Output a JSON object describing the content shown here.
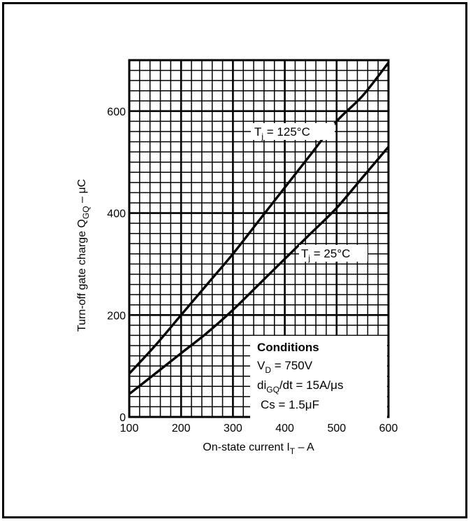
{
  "chart_data": {
    "type": "line",
    "xlabel": {
      "main": "On-state current I",
      "sub": "T",
      "tail": " – A"
    },
    "ylabel": {
      "main": "Turn-off gate charge Q",
      "sub": "GQ",
      "tail": " – μC"
    },
    "xlim": [
      100,
      600
    ],
    "ylim": [
      0,
      700
    ],
    "x_ticks": [
      "100",
      "200",
      "300",
      "400",
      "500",
      "600"
    ],
    "y_ticks": [
      "0",
      "200",
      "400",
      "600"
    ],
    "grid": true,
    "series": [
      {
        "name": "Tj = 125°C",
        "label": {
          "base": "T",
          "sub": "j",
          "tail": " = 125°C"
        },
        "x": [
          100,
          150,
          200,
          250,
          300,
          350,
          400,
          450,
          500,
          550,
          600
        ],
        "y": [
          85,
          140,
          200,
          260,
          320,
          385,
          450,
          515,
          580,
          630,
          695
        ]
      },
      {
        "name": "Tj = 25°C",
        "label": {
          "base": "T",
          "sub": "j",
          "tail": " = 25°C"
        },
        "x": [
          100,
          150,
          200,
          250,
          300,
          350,
          400,
          450,
          500,
          550,
          600
        ],
        "y": [
          45,
          85,
          125,
          165,
          210,
          260,
          310,
          360,
          410,
          470,
          530
        ]
      }
    ],
    "conditions": {
      "title": "Conditions",
      "lines": [
        {
          "base": "V",
          "sub": "D",
          "tail": " = 750V"
        },
        {
          "base": "di",
          "sub": "GQ",
          "tail": "/dt = 15A/μs"
        },
        {
          "base": "Cs = 1.5μF",
          "sub": "",
          "tail": ""
        }
      ]
    }
  }
}
